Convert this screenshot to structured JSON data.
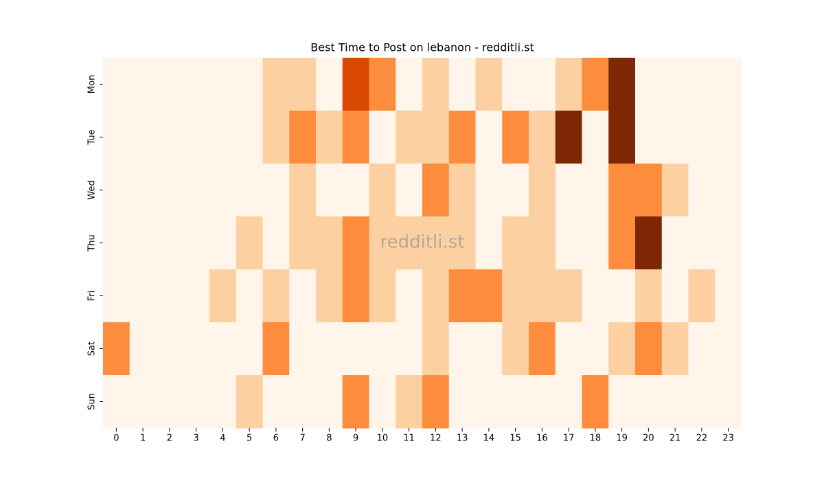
{
  "chart_data": {
    "type": "heatmap",
    "title": "Best Time to Post on lebanon - redditli.st",
    "watermark": "redditli.st",
    "categories": [
      0,
      1,
      2,
      3,
      4,
      5,
      6,
      7,
      8,
      9,
      10,
      11,
      12,
      13,
      14,
      15,
      16,
      17,
      18,
      19,
      20,
      21,
      22,
      23
    ],
    "rows": [
      "Mon",
      "Tue",
      "Wed",
      "Thu",
      "Fri",
      "Sat",
      "Sun"
    ],
    "values": [
      [
        0,
        0,
        0,
        0,
        0,
        0,
        1,
        1,
        0,
        3,
        2,
        0,
        1,
        0,
        1,
        0,
        0,
        1,
        2,
        4,
        0,
        0,
        0,
        0
      ],
      [
        0,
        0,
        0,
        0,
        0,
        0,
        1,
        2,
        1,
        2,
        0,
        1,
        1,
        2,
        0,
        2,
        1,
        4,
        0,
        4,
        0,
        0,
        0,
        0
      ],
      [
        0,
        0,
        0,
        0,
        0,
        0,
        0,
        1,
        0,
        0,
        1,
        0,
        2,
        1,
        0,
        0,
        1,
        0,
        0,
        2,
        2,
        1,
        0,
        0
      ],
      [
        0,
        0,
        0,
        0,
        0,
        1,
        0,
        1,
        1,
        2,
        1,
        1,
        1,
        1,
        0,
        1,
        1,
        0,
        0,
        2,
        4,
        0,
        0,
        0
      ],
      [
        0,
        0,
        0,
        0,
        1,
        0,
        1,
        0,
        1,
        2,
        1,
        0,
        1,
        2,
        2,
        1,
        1,
        1,
        0,
        0,
        1,
        0,
        1,
        0
      ],
      [
        2,
        0,
        0,
        0,
        0,
        0,
        2,
        0,
        0,
        0,
        0,
        0,
        1,
        0,
        0,
        1,
        2,
        0,
        0,
        1,
        2,
        1,
        0,
        0
      ],
      [
        0,
        0,
        0,
        0,
        0,
        1,
        0,
        0,
        0,
        2,
        0,
        1,
        2,
        0,
        0,
        0,
        0,
        0,
        2,
        0,
        0,
        0,
        0,
        0
      ]
    ],
    "zlim": [
      0,
      4
    ],
    "colormap": [
      "#fff5eb",
      "#fdd0a2",
      "#fd8d3c",
      "#d94801",
      "#7f2704"
    ]
  }
}
